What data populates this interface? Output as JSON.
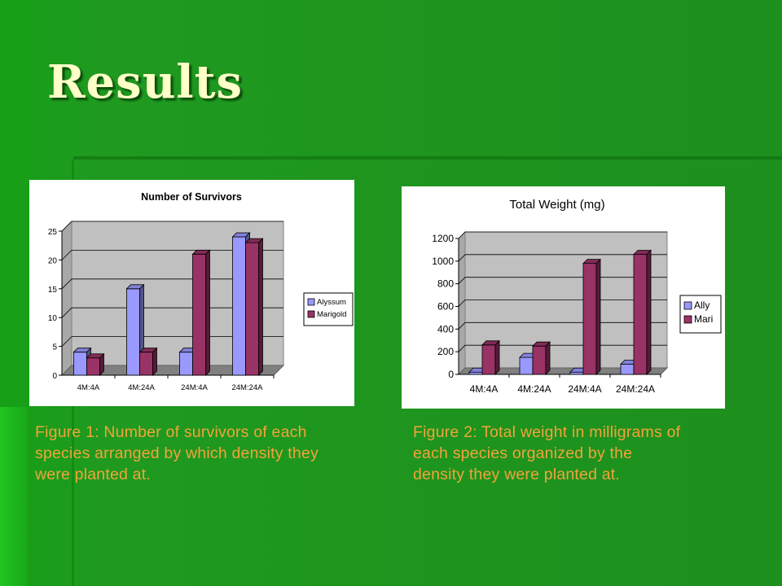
{
  "slide": {
    "title": "Results",
    "caption1": "Figure 1: Number of survivors of each species arranged by which density they were planted at.",
    "caption2": "Figure 2: Total weight in milligrams of each species organized by the density they were planted at."
  },
  "colors": {
    "series_a": "#9999ff",
    "series_b": "#993366",
    "plot_bg": "#c0c0c0",
    "caption": "#f2a33a"
  },
  "chart_data": [
    {
      "type": "bar",
      "title": "Number of Survivors",
      "categories": [
        "4M:4A",
        "4M:24A",
        "24M:4A",
        "24M:24A"
      ],
      "series": [
        {
          "name": "Alyssum",
          "values": [
            4,
            15,
            4,
            24
          ]
        },
        {
          "name": "Marigold",
          "values": [
            3,
            4,
            21,
            23
          ]
        }
      ],
      "ylim": [
        0,
        25
      ],
      "yticks": [
        "0",
        "5",
        "10",
        "15",
        "20",
        "25"
      ],
      "grid": true,
      "legend": "right"
    },
    {
      "type": "bar",
      "title": "Total Weight (mg)",
      "categories": [
        "4M:4A",
        "4M:24A",
        "24M:4A",
        "24M:24A"
      ],
      "series": [
        {
          "name": "Ally",
          "values": [
            20,
            150,
            20,
            90
          ]
        },
        {
          "name": "Mari",
          "values": [
            260,
            250,
            980,
            1060
          ]
        }
      ],
      "ylim": [
        0,
        1200
      ],
      "yticks": [
        "0",
        "200",
        "400",
        "600",
        "800",
        "1000",
        "1200"
      ],
      "grid": true,
      "legend": "right"
    }
  ]
}
